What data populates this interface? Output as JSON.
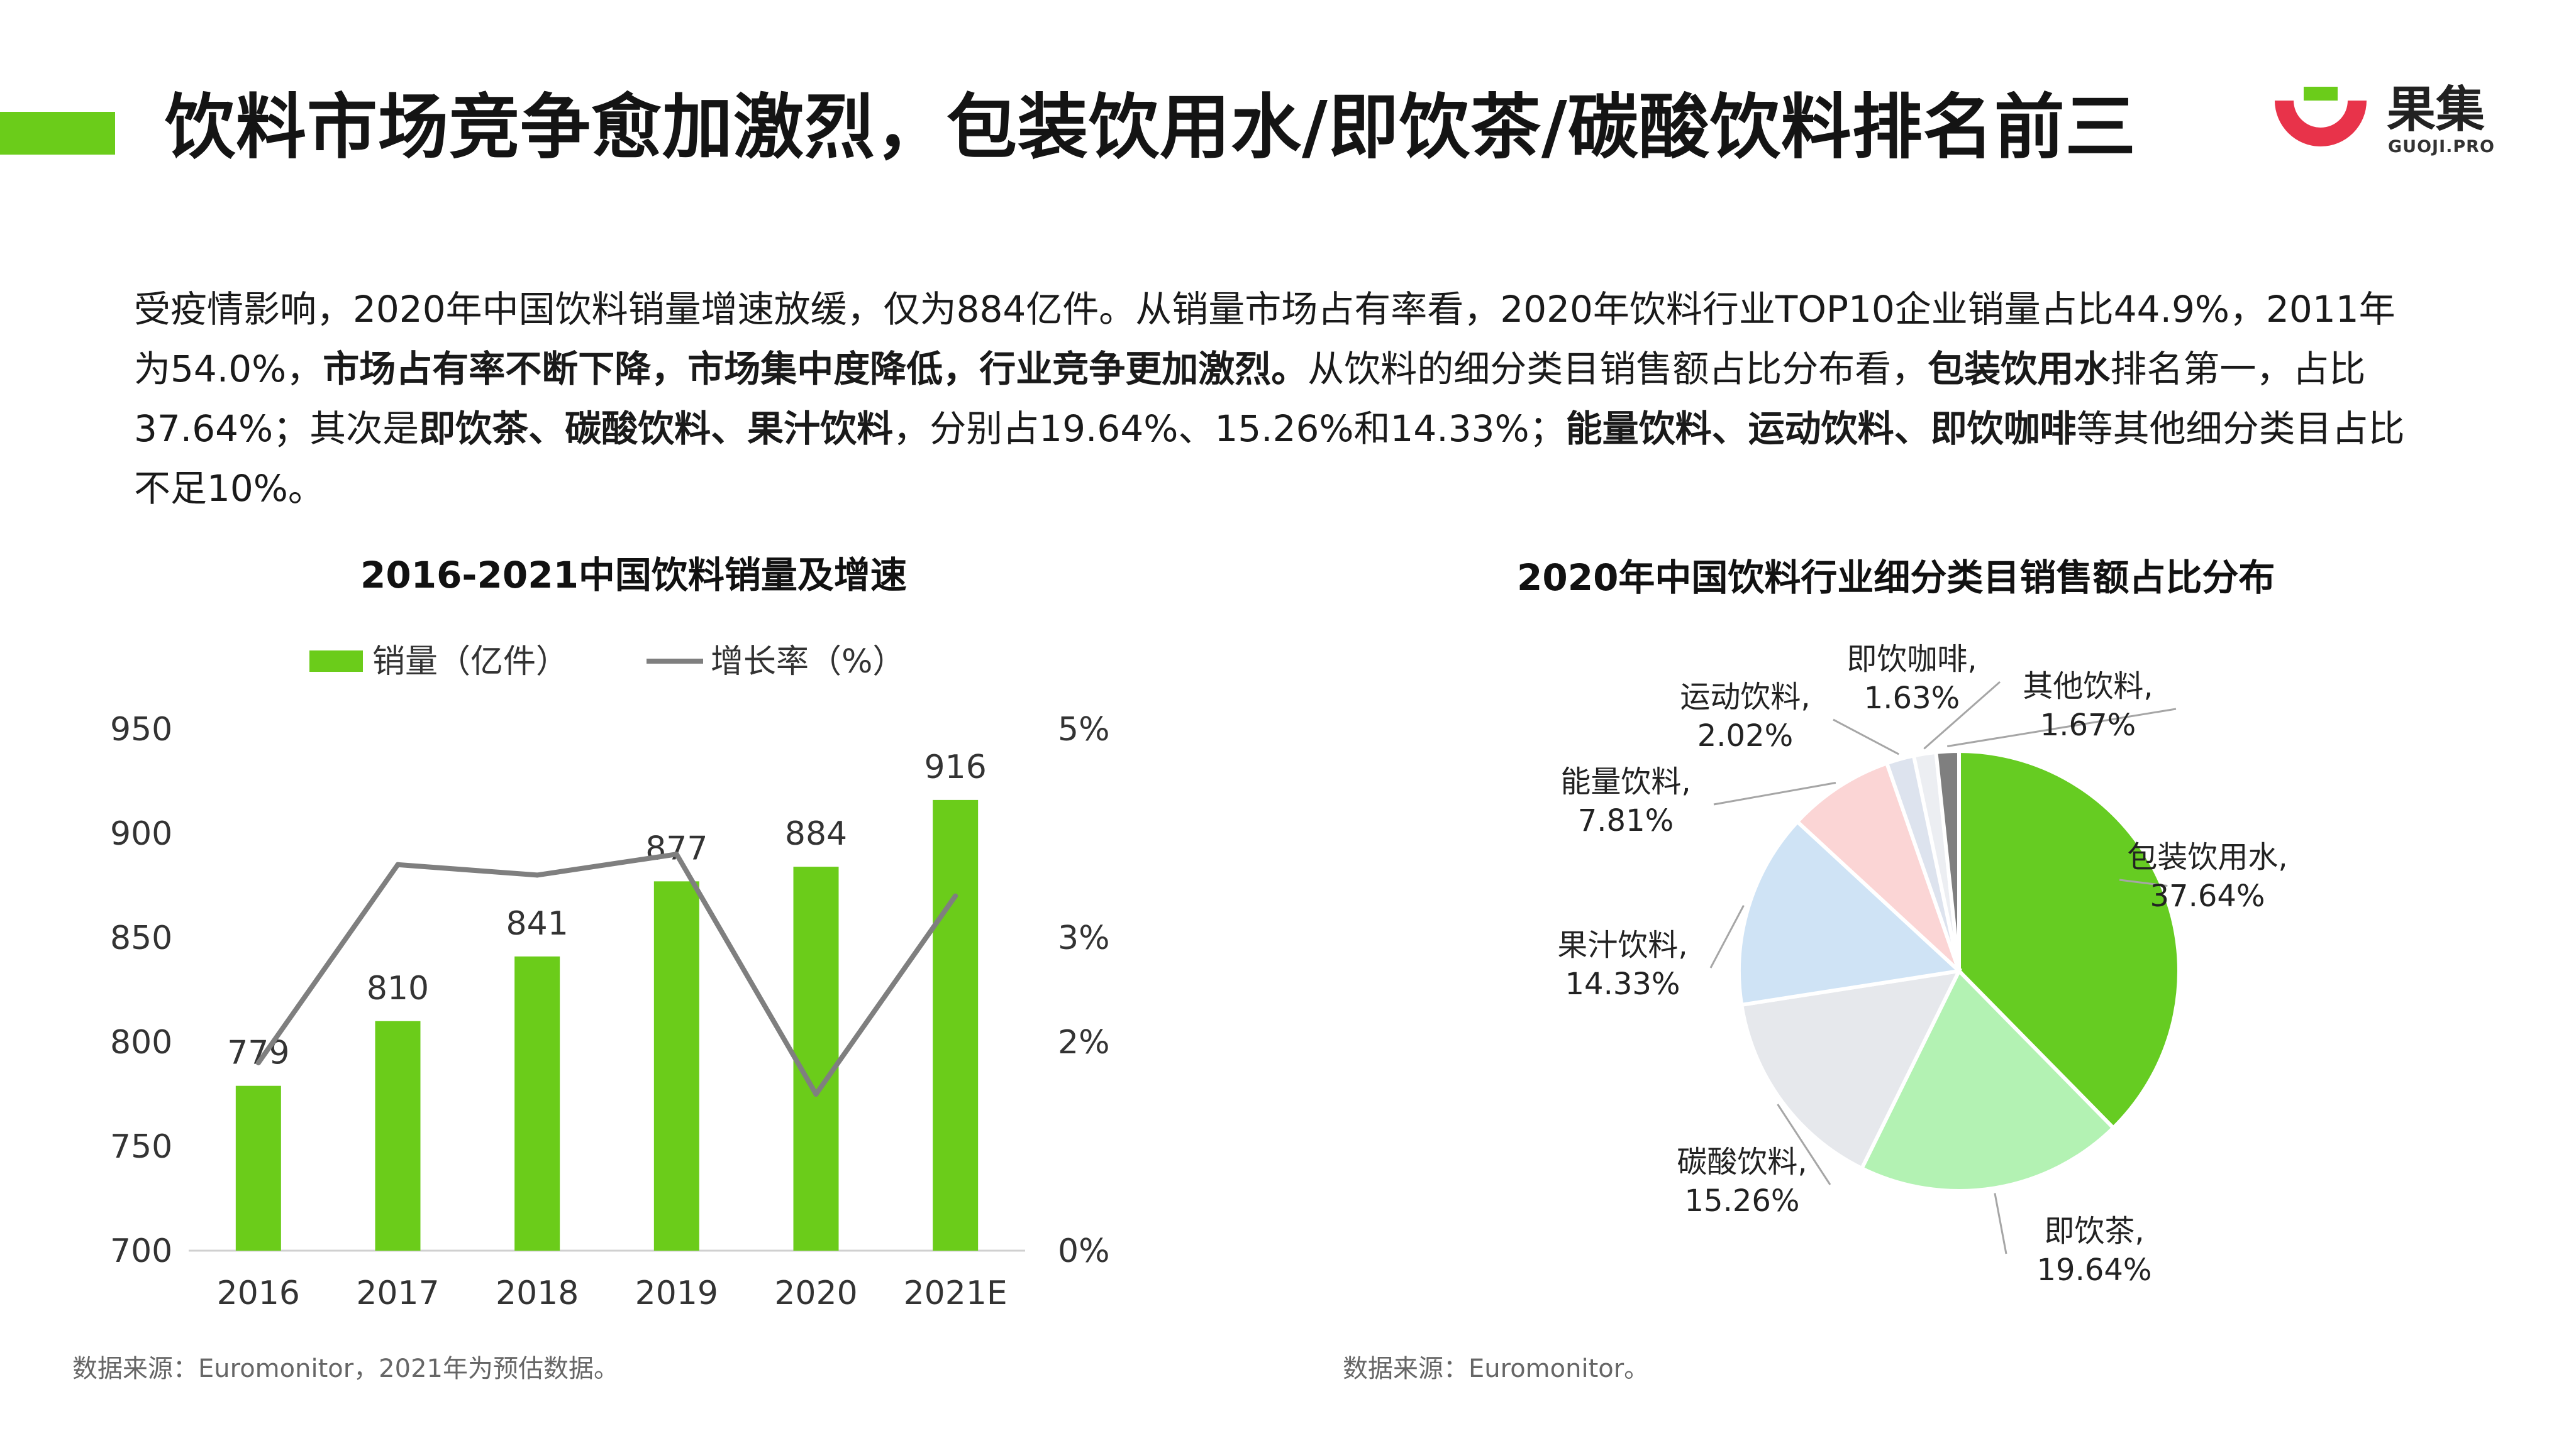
{
  "header": {
    "title": "饮料市场竞争愈加激烈，包装饮用水/即饮茶/碳酸饮料排名前三",
    "logo_text": "果集",
    "logo_sub": "GUOJI.PRO"
  },
  "colors": {
    "accent": "#6bcc1a",
    "bar": "#6bcc1a",
    "line": "#7f7f7f",
    "logo_red": "#e8334a",
    "logo_green": "#6bcc1a"
  },
  "summary": {
    "s1": "受疫情影响，2020年中国饮料销量增速放缓，仅为884亿件。从销量市场占有率看，2020年饮料行业TOP10企业销量占比44.9%，2011年为54.0%，",
    "b1": "市场占有率不断下降，市场集中度降低，行业竞争更加激烈。",
    "s2": "从饮料的细分类目销售额占比分布看，",
    "b2": "包装饮用水",
    "s3": "排名第一，占比37.64%；其次是",
    "b3": "即饮茶、碳酸饮料、果汁饮料",
    "s4": "，分别占19.64%、15.26%和14.33%；",
    "b4": "能量饮料、运动饮料、即饮咖啡",
    "s5": "等其他细分类目占比不足10%。"
  },
  "chart_data": [
    {
      "type": "bar",
      "title": "2016-2021中国饮料销量及增速",
      "categories": [
        "2016",
        "2017",
        "2018",
        "2019",
        "2020",
        "2021E"
      ],
      "series": [
        {
          "name": "销量（亿件）",
          "type": "bar",
          "axis": "left",
          "values": [
            779,
            810,
            841,
            877,
            884,
            916
          ]
        },
        {
          "name": "增长率（%）",
          "type": "line",
          "axis": "right",
          "values": [
            1.8,
            3.7,
            3.6,
            3.8,
            1.5,
            3.4
          ]
        }
      ],
      "y_left": {
        "ylim": [
          700,
          950
        ],
        "ticks": [
          "700",
          "750",
          "800",
          "850",
          "900",
          "950"
        ]
      },
      "y_right": {
        "ylim": [
          0,
          5
        ],
        "ticks": [
          "0%",
          "2%",
          "3%",
          "5%"
        ],
        "tick_values": [
          0,
          2,
          3,
          5
        ]
      },
      "legend": "top",
      "grid": false
    },
    {
      "type": "pie",
      "title": "2020年中国饮料行业细分类目销售额占比分布",
      "slices": [
        {
          "label": "包装饮用水,",
          "pct": "37.64%",
          "value": 37.64,
          "color": "#66cc22"
        },
        {
          "label": "即饮茶,",
          "pct": "19.64%",
          "value": 19.64,
          "color": "#b3f2b3"
        },
        {
          "label": "碳酸饮料,",
          "pct": "15.26%",
          "value": 15.26,
          "color": "#e6e8ec"
        },
        {
          "label": "果汁饮料,",
          "pct": "14.33%",
          "value": 14.33,
          "color": "#cfe3f5"
        },
        {
          "label": "能量饮料,",
          "pct": "7.81%",
          "value": 7.81,
          "color": "#fbd5d5"
        },
        {
          "label": "运动饮料,",
          "pct": "2.02%",
          "value": 2.02,
          "color": "#dde3ee"
        },
        {
          "label": "即饮咖啡,",
          "pct": "1.63%",
          "value": 1.63,
          "color": "#eceef2"
        },
        {
          "label": "其他饮料,",
          "pct": "1.67%",
          "value": 1.67,
          "color": "#7f7f7f"
        }
      ]
    }
  ],
  "sources": {
    "left": "数据来源：Euromonitor，2021年为预估数据。",
    "right": "数据来源：Euromonitor。"
  }
}
